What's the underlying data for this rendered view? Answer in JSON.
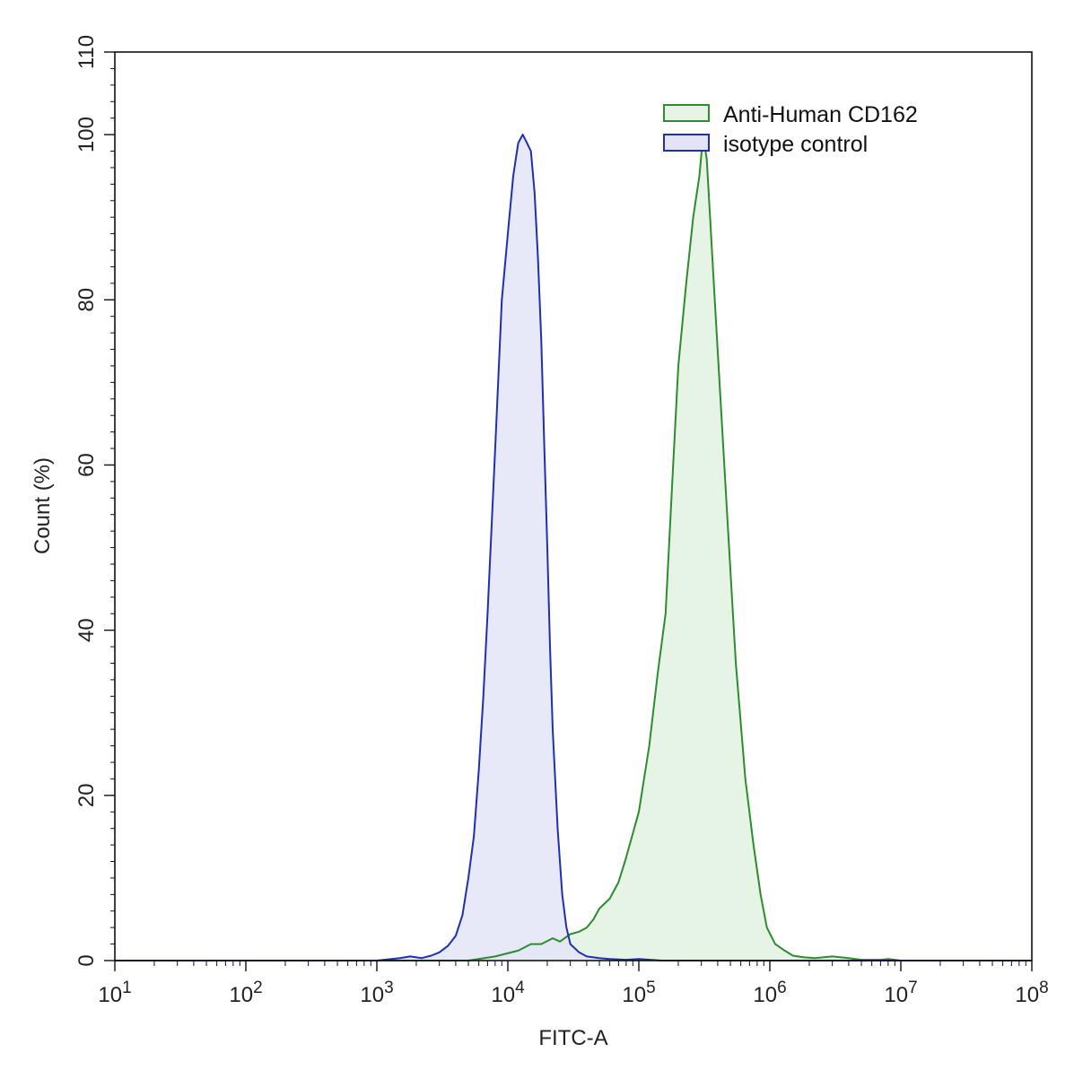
{
  "chart_data": {
    "type": "area",
    "title": "",
    "xlabel": "FITC-A",
    "ylabel": "Count  (%)",
    "xscale": "log",
    "xlim": [
      10,
      100000000
    ],
    "ylim": [
      0,
      110
    ],
    "x_ticks": [
      {
        "base": "10",
        "exp": "1",
        "value": 10
      },
      {
        "base": "10",
        "exp": "2",
        "value": 100
      },
      {
        "base": "10",
        "exp": "3",
        "value": 1000
      },
      {
        "base": "10",
        "exp": "4",
        "value": 10000
      },
      {
        "base": "10",
        "exp": "5",
        "value": 100000
      },
      {
        "base": "10",
        "exp": "6",
        "value": 1000000
      },
      {
        "base": "10",
        "exp": "7",
        "value": 10000000
      },
      {
        "base": "10",
        "exp": "8",
        "value": 100000000
      }
    ],
    "y_ticks": [
      "0",
      "20",
      "40",
      "60",
      "80",
      "100",
      "110"
    ],
    "y_tick_values": [
      0,
      20,
      40,
      60,
      80,
      100,
      110
    ],
    "grid": false,
    "legend_position": "top-right",
    "series": [
      {
        "name": "Anti-Human CD162",
        "stroke": "#2e8b2e",
        "fill": "#e6f4e6",
        "x": [
          5000,
          8000,
          12000,
          15000,
          18000,
          22000,
          25000,
          30000,
          35000,
          40000,
          45000,
          50000,
          60000,
          70000,
          80000,
          100000,
          120000,
          140000,
          160000,
          180000,
          200000,
          230000,
          260000,
          290000,
          310000,
          330000,
          350000,
          380000,
          420000,
          480000,
          550000,
          650000,
          750000,
          850000,
          950000,
          1100000,
          1300000,
          1500000,
          1800000,
          2200000,
          3000000,
          4000000,
          5000000,
          7000000,
          8000000,
          10000000
        ],
        "y": [
          0,
          0.5,
          1.2,
          2.0,
          2.0,
          2.7,
          2.3,
          3.2,
          3.5,
          4.0,
          5.0,
          6.3,
          7.5,
          9.5,
          12.5,
          18,
          26,
          35,
          42,
          58,
          72,
          82,
          90,
          95,
          100,
          97,
          90,
          80,
          68,
          52,
          36,
          22,
          14,
          8,
          4,
          2,
          1.2,
          0.6,
          0.4,
          0.3,
          0.5,
          0.3,
          0.1,
          0.1,
          0.2,
          0
        ]
      },
      {
        "name": "isotype control",
        "stroke": "#1f2fb0",
        "fill": "#e3e5f7",
        "x": [
          1000,
          1500,
          1800,
          2200,
          2600,
          3000,
          3500,
          4000,
          4500,
          5000,
          5500,
          6000,
          6500,
          7000,
          8000,
          9000,
          10000,
          11000,
          12000,
          13000,
          14000,
          15000,
          16000,
          17000,
          18000,
          19000,
          20000,
          21000,
          22000,
          24000,
          26000,
          28000,
          30000,
          35000,
          40000,
          50000,
          60000,
          80000,
          100000,
          150000
        ],
        "y": [
          0,
          0.3,
          0.5,
          0.3,
          0.6,
          1.0,
          1.8,
          3.0,
          5.5,
          10,
          15,
          23,
          32,
          42,
          62,
          80,
          88,
          95,
          99,
          100,
          99,
          98,
          93,
          85,
          75,
          62,
          50,
          38,
          28,
          16,
          8,
          4,
          2,
          1,
          0.5,
          0.3,
          0.2,
          0.1,
          0.2,
          0
        ]
      }
    ]
  }
}
